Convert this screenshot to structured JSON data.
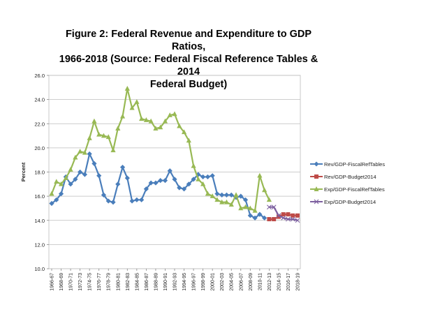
{
  "chart_data": {
    "type": "line",
    "title_lines": [
      "Figure 2: Federal Revenue and Expenditure to GDP Ratios,",
      "1966-2018 (Source: Federal Fiscal Reference Tables & 2014",
      "Federal Budget)"
    ],
    "xlabel": "",
    "ylabel": "Percent",
    "ylim": [
      10,
      26
    ],
    "yticks": [
      "10.0",
      "12.0",
      "14.0",
      "16.0",
      "18.0",
      "20.0",
      "22.0",
      "24.0",
      "26.0"
    ],
    "grid": true,
    "legend_position": "right",
    "categories": [
      "1966-67",
      "1967-68",
      "1968-69",
      "1969-70",
      "1970-71",
      "1971-72",
      "1972-73",
      "1973-74",
      "1974-75",
      "1975-76",
      "1976-77",
      "1977-78",
      "1978-79",
      "1979-80",
      "1980-81",
      "1981-82",
      "1982-83",
      "1983-84",
      "1984-85",
      "1985-86",
      "1986-87",
      "1987-88",
      "1988-89",
      "1989-90",
      "1990-91",
      "1991-92",
      "1992-93",
      "1993-94",
      "1994-95",
      "1995-96",
      "1996-97",
      "1997-98",
      "1998-99",
      "1999-00",
      "2000-01",
      "2001-02",
      "2002-03",
      "2003-04",
      "2004-05",
      "2005-06",
      "2006-07",
      "2007-08",
      "2008-09",
      "2009-10",
      "2010-11",
      "2011-12",
      "2012-13",
      "2013-14",
      "2014-15",
      "2015-16",
      "2016-17",
      "2017-18",
      "2018-19"
    ],
    "tick_labels": [
      "1966-67",
      "1968-69",
      "1970-71",
      "1972-73",
      "1974-75",
      "1976-77",
      "1978-79",
      "1980-81",
      "1982-83",
      "1984-85",
      "1986-87",
      "1988-89",
      "1990-91",
      "1992-93",
      "1994-95",
      "1996-97",
      "1998-99",
      "2000-01",
      "2002-03",
      "2004-05",
      "2006-07",
      "2008-09",
      "2010-11",
      "2012-13",
      "2014-15",
      "2016-17",
      "2018-19"
    ],
    "series": [
      {
        "name": "Rev/GDP-FiscalRefTables",
        "color": "#4a7ebb",
        "marker": "diamond",
        "values": [
          15.4,
          15.7,
          16.2,
          17.6,
          17.0,
          17.4,
          18.0,
          17.8,
          19.5,
          18.7,
          17.7,
          16.1,
          15.6,
          15.5,
          17.0,
          18.4,
          17.5,
          15.6,
          15.7,
          15.7,
          16.6,
          17.1,
          17.1,
          17.3,
          17.3,
          18.1,
          17.4,
          16.7,
          16.6,
          17.0,
          17.4,
          17.8,
          17.6,
          17.6,
          17.7,
          16.2,
          16.1,
          16.1,
          16.1,
          15.9,
          16.0,
          15.7,
          14.4,
          14.2,
          14.5,
          14.2,
          null,
          null,
          null,
          null,
          null,
          null,
          null
        ]
      },
      {
        "name": "Rev/GDP-Budget2014",
        "color": "#be4b48",
        "marker": "square",
        "values": [
          null,
          null,
          null,
          null,
          null,
          null,
          null,
          null,
          null,
          null,
          null,
          null,
          null,
          null,
          null,
          null,
          null,
          null,
          null,
          null,
          null,
          null,
          null,
          null,
          null,
          null,
          null,
          null,
          null,
          null,
          null,
          null,
          null,
          null,
          null,
          null,
          null,
          null,
          null,
          null,
          null,
          null,
          null,
          null,
          null,
          null,
          14.1,
          14.1,
          14.3,
          14.5,
          14.5,
          14.4,
          14.4
        ]
      },
      {
        "name": "Exp/GDP-FiscalRefTables",
        "color": "#98b954",
        "marker": "triangle",
        "values": [
          16.2,
          17.2,
          17.0,
          17.5,
          18.2,
          19.2,
          19.7,
          19.6,
          20.8,
          22.2,
          21.1,
          21.0,
          20.9,
          19.8,
          21.6,
          22.6,
          24.9,
          23.3,
          23.8,
          22.4,
          22.3,
          22.2,
          21.6,
          21.7,
          22.2,
          22.7,
          22.8,
          21.8,
          21.3,
          20.6,
          18.5,
          17.4,
          17.0,
          16.2,
          16.0,
          15.7,
          15.5,
          15.5,
          15.3,
          16.1,
          15.0,
          15.1,
          15.0,
          14.8,
          17.7,
          16.5,
          15.7,
          null,
          null,
          null,
          null,
          null,
          null
        ]
      },
      {
        "name": "Exp/GDP-Budget2014",
        "color": "#7d60a0",
        "marker": "x",
        "values": [
          null,
          null,
          null,
          null,
          null,
          null,
          null,
          null,
          null,
          null,
          null,
          null,
          null,
          null,
          null,
          null,
          null,
          null,
          null,
          null,
          null,
          null,
          null,
          null,
          null,
          null,
          null,
          null,
          null,
          null,
          null,
          null,
          null,
          null,
          null,
          null,
          null,
          null,
          null,
          null,
          null,
          null,
          null,
          null,
          null,
          null,
          15.1,
          15.1,
          14.4,
          14.2,
          14.1,
          14.1,
          14.0
        ]
      }
    ]
  }
}
